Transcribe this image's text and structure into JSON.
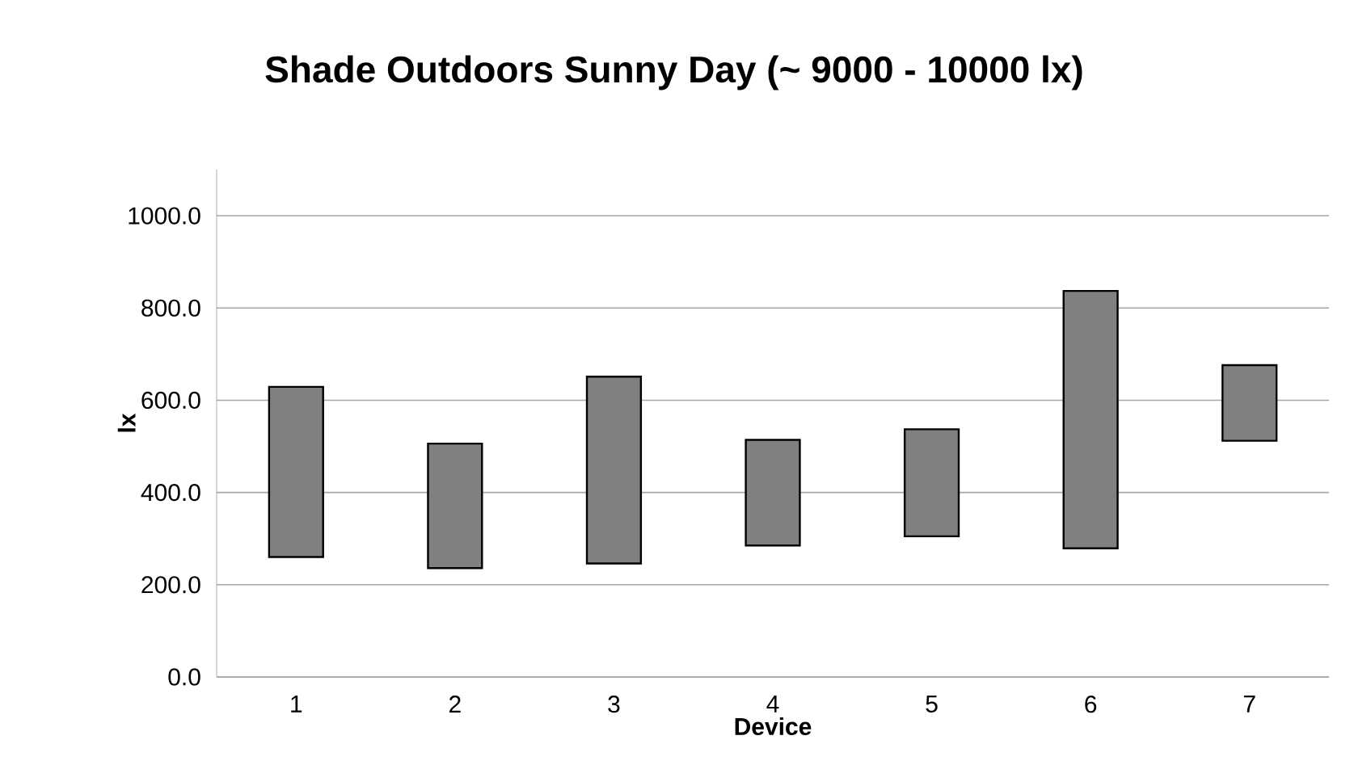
{
  "chart_data": {
    "type": "bar",
    "title": "Shade Outdoors Sunny Day (~ 9000 - 10000 lx)",
    "xlabel": "Device",
    "ylabel": "lx",
    "categories": [
      "1",
      "2",
      "3",
      "4",
      "5",
      "6",
      "7"
    ],
    "base": [
      260,
      236,
      246,
      285,
      305,
      279,
      512
    ],
    "values": [
      369,
      270,
      405,
      229,
      232,
      558,
      164
    ],
    "color": "#808080",
    "ylim": [
      0,
      1100
    ],
    "yticks": [
      {
        "value": 0,
        "label": "0.0"
      },
      {
        "value": 200,
        "label": "200.0"
      },
      {
        "value": 400,
        "label": "400.0"
      },
      {
        "value": 600,
        "label": "600.0"
      },
      {
        "value": 800,
        "label": "800.0"
      },
      {
        "value": 1000,
        "label": "1000.0"
      }
    ],
    "grid": "y"
  }
}
